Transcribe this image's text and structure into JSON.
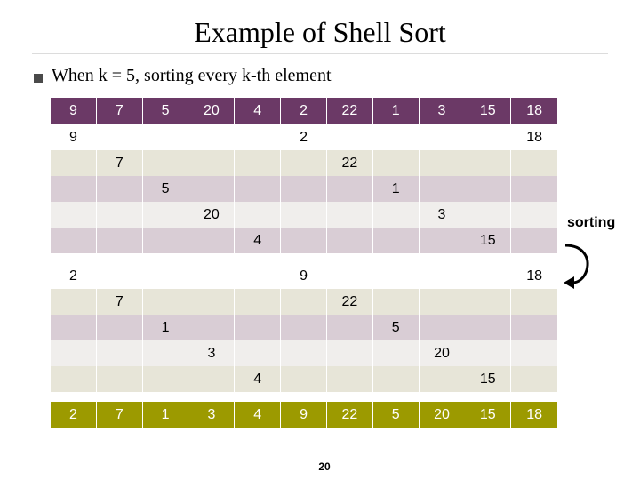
{
  "title": "Example of Shell Sort",
  "bullet": "When k = 5, sorting every k-th element",
  "sorting_label": "sorting",
  "page_number": "20",
  "colors": {
    "header": "#6b3966",
    "final": "#9c9a00",
    "beige": "#e7e5d8",
    "lavender": "#d9cdd5",
    "light": "#f0eeec"
  },
  "rows": [
    {
      "style": "header",
      "cells": [
        "9",
        "7",
        "5",
        "20",
        "4",
        "2",
        "22",
        "1",
        "3",
        "15",
        "18"
      ]
    },
    {
      "style": "white",
      "cells": [
        "9",
        "",
        "",
        "",
        "",
        "2",
        "",
        "",
        "",
        "",
        "18"
      ]
    },
    {
      "style": "beige",
      "cells": [
        "",
        "7",
        "",
        "",
        "",
        "",
        "22",
        "",
        "",
        "",
        ""
      ]
    },
    {
      "style": "lav",
      "cells": [
        "",
        "",
        "5",
        "",
        "",
        "",
        "",
        "1",
        "",
        "",
        ""
      ]
    },
    {
      "style": "light",
      "cells": [
        "",
        "",
        "",
        "20",
        "",
        "",
        "",
        "",
        "3",
        "",
        ""
      ]
    },
    {
      "style": "lav",
      "cells": [
        "",
        "",
        "",
        "",
        "4",
        "",
        "",
        "",
        "",
        "15",
        ""
      ]
    },
    {
      "style": "white",
      "cells": [
        "2",
        "",
        "",
        "",
        "",
        "9",
        "",
        "",
        "",
        "",
        "18"
      ]
    },
    {
      "style": "beige",
      "cells": [
        "",
        "7",
        "",
        "",
        "",
        "",
        "22",
        "",
        "",
        "",
        ""
      ]
    },
    {
      "style": "lav",
      "cells": [
        "",
        "",
        "1",
        "",
        "",
        "",
        "",
        "5",
        "",
        "",
        ""
      ]
    },
    {
      "style": "light",
      "cells": [
        "",
        "",
        "",
        "3",
        "",
        "",
        "",
        "",
        "20",
        "",
        ""
      ]
    },
    {
      "style": "beige",
      "cells": [
        "",
        "",
        "",
        "",
        "4",
        "",
        "",
        "",
        "",
        "15",
        ""
      ]
    },
    {
      "style": "final",
      "cells": [
        "2",
        "7",
        "1",
        "3",
        "4",
        "9",
        "22",
        "5",
        "20",
        "15",
        "18"
      ]
    }
  ]
}
